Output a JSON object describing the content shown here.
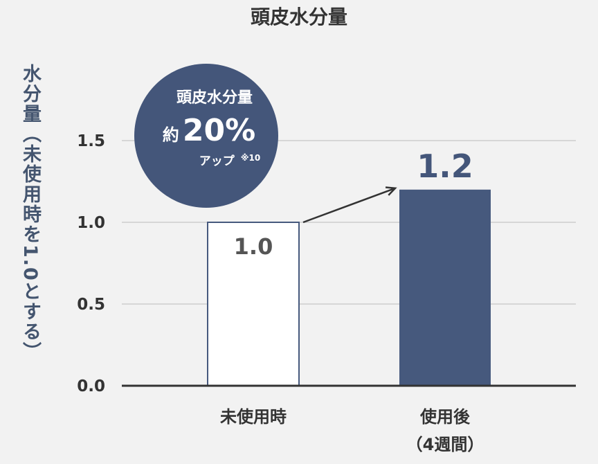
{
  "chart_data": {
    "type": "bar",
    "title": "頭皮水分量",
    "ylabel": "水分量（未使用時を1.0とする）",
    "xlabel": "",
    "categories": [
      "未使用時",
      "使用後"
    ],
    "category_sublabels": [
      "",
      "（4週間）"
    ],
    "values": [
      1.0,
      1.2
    ],
    "value_labels": [
      "1.0",
      "1.2"
    ],
    "ylim": [
      0,
      1.5
    ],
    "yticks": [
      "0.0",
      "0.5",
      "1.0",
      "1.5"
    ],
    "grid": true,
    "bar_styles": [
      "outline",
      "filled"
    ],
    "colors": {
      "bar": "#46597d",
      "badge": "#44567a",
      "grid": "#cccccc",
      "axis": "#333333"
    },
    "annotation": {
      "line1": "頭皮水分量",
      "line2_prefix": "約",
      "line2_value": "20%",
      "line3": "アップ",
      "footnote": "※10"
    }
  }
}
